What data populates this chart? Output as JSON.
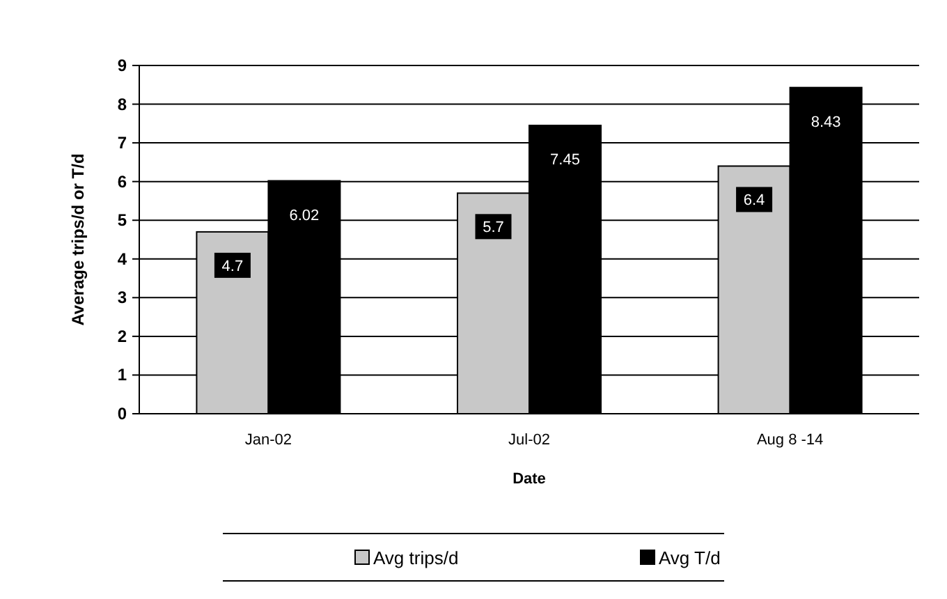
{
  "chart_data": {
    "type": "bar",
    "xlabel": "Date",
    "ylabel": "Average trips/d or T/d",
    "categories": [
      "Jan-02",
      "Jul-02",
      "Aug 8 -14"
    ],
    "series": [
      {
        "name": "Avg trips/d",
        "color": "#c8c8c8",
        "values": [
          4.7,
          5.7,
          6.4
        ]
      },
      {
        "name": "Avg T/d",
        "color": "#000000",
        "values": [
          6.02,
          7.45,
          8.43
        ]
      }
    ],
    "ylim": [
      0,
      9
    ],
    "yticks": [
      0,
      1,
      2,
      3,
      4,
      5,
      6,
      7,
      8,
      9
    ],
    "grid": "y",
    "legend": "bottom",
    "data_labels": true
  }
}
